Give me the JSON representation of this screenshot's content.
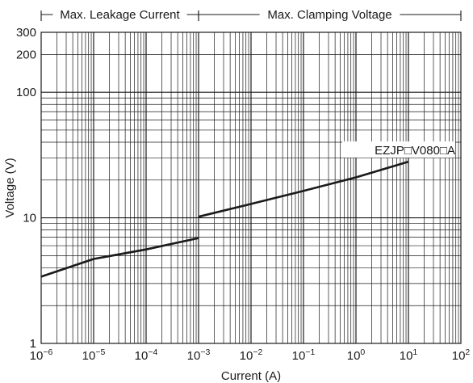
{
  "chart_data": {
    "type": "line",
    "xlabel": "Current (A)",
    "ylabel": "Voltage (V)",
    "x_scale": "log",
    "y_scale": "log",
    "xlim": [
      1e-06,
      100
    ],
    "ylim": [
      1,
      300
    ],
    "grid": true,
    "x_tick_labels": [
      {
        "value": 1e-06,
        "base": "10",
        "exp": "−6"
      },
      {
        "value": 1e-05,
        "base": "10",
        "exp": "−5"
      },
      {
        "value": 0.0001,
        "base": "10",
        "exp": "−4"
      },
      {
        "value": 0.001,
        "base": "10",
        "exp": "−3"
      },
      {
        "value": 0.01,
        "base": "10",
        "exp": "−2"
      },
      {
        "value": 0.1,
        "base": "10",
        "exp": "−1"
      },
      {
        "value": 1,
        "base": "10",
        "exp": "0"
      },
      {
        "value": 10,
        "base": "10",
        "exp": "1"
      },
      {
        "value": 100,
        "base": "10",
        "exp": "2"
      }
    ],
    "y_tick_labels": [
      {
        "value": 1,
        "label": "1"
      },
      {
        "value": 10,
        "label": "10"
      },
      {
        "value": 100,
        "label": "100"
      },
      {
        "value": 200,
        "label": "200"
      },
      {
        "value": 300,
        "label": "300"
      }
    ],
    "regions": [
      {
        "label": "Max. Leakage Current",
        "x_start": 1e-06,
        "x_end": 0.001
      },
      {
        "label": "Max. Clamping Voltage",
        "x_start": 0.001,
        "x_end": 100
      }
    ],
    "series": [
      {
        "name": "EZJP□V080□A",
        "segments": [
          [
            [
              1e-06,
              3.4
            ],
            [
              1e-05,
              4.7
            ],
            [
              0.0001,
              5.6
            ],
            [
              0.001,
              6.9
            ]
          ],
          [
            [
              0.001,
              10.2
            ],
            [
              0.01,
              12.9
            ],
            [
              0.1,
              16.4
            ],
            [
              1,
              21.0
            ],
            [
              10,
              28.0
            ]
          ]
        ]
      }
    ]
  }
}
